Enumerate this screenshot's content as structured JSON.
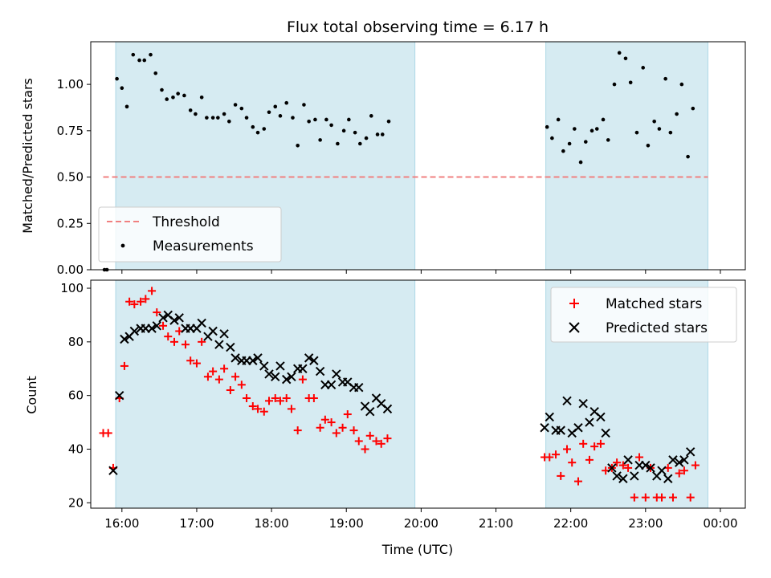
{
  "chart_data": [
    {
      "type": "scatter",
      "title": "Flux total observing time = 6.17 h",
      "xlabel": "",
      "ylabel": "Matched/Predicted stars",
      "xlim": [
        "15:35",
        "00:20"
      ],
      "ylim": [
        0,
        1.23
      ],
      "yticks": [
        "0.00",
        "0.25",
        "0.50",
        "0.75",
        "1.00"
      ],
      "legend_position": "lower-left",
      "shaded_intervals": [
        [
          "15:55",
          "19:55"
        ],
        [
          "21:40",
          "23:50"
        ]
      ],
      "threshold": {
        "name": "Threshold",
        "value": 0.5,
        "x_range": [
          "15:45",
          "23:50"
        ],
        "color": "#f08080"
      },
      "series": [
        {
          "name": "Measurements",
          "color": "#000000",
          "points": [
            [
              "15:46",
              0.0
            ],
            [
              "15:48",
              0.0
            ],
            [
              "15:56",
              1.03
            ],
            [
              "16:00",
              0.98
            ],
            [
              "16:04",
              0.88
            ],
            [
              "16:09",
              1.16
            ],
            [
              "16:14",
              1.13
            ],
            [
              "16:18",
              1.13
            ],
            [
              "16:23",
              1.16
            ],
            [
              "16:27",
              1.06
            ],
            [
              "16:32",
              0.97
            ],
            [
              "16:36",
              0.92
            ],
            [
              "16:41",
              0.93
            ],
            [
              "16:45",
              0.95
            ],
            [
              "16:50",
              0.94
            ],
            [
              "16:55",
              0.86
            ],
            [
              "16:59",
              0.84
            ],
            [
              "17:04",
              0.93
            ],
            [
              "17:08",
              0.82
            ],
            [
              "17:13",
              0.82
            ],
            [
              "17:17",
              0.82
            ],
            [
              "17:22",
              0.84
            ],
            [
              "17:26",
              0.8
            ],
            [
              "17:31",
              0.89
            ],
            [
              "17:36",
              0.87
            ],
            [
              "17:40",
              0.82
            ],
            [
              "17:45",
              0.77
            ],
            [
              "17:49",
              0.74
            ],
            [
              "17:54",
              0.76
            ],
            [
              "17:58",
              0.85
            ],
            [
              "18:03",
              0.88
            ],
            [
              "18:07",
              0.83
            ],
            [
              "18:12",
              0.9
            ],
            [
              "18:17",
              0.82
            ],
            [
              "18:21",
              0.67
            ],
            [
              "18:26",
              0.89
            ],
            [
              "18:30",
              0.8
            ],
            [
              "18:35",
              0.81
            ],
            [
              "18:39",
              0.7
            ],
            [
              "18:44",
              0.81
            ],
            [
              "18:48",
              0.78
            ],
            [
              "18:53",
              0.68
            ],
            [
              "18:58",
              0.75
            ],
            [
              "19:02",
              0.81
            ],
            [
              "19:07",
              0.74
            ],
            [
              "19:11",
              0.68
            ],
            [
              "19:16",
              0.71
            ],
            [
              "19:20",
              0.83
            ],
            [
              "19:25",
              0.73
            ],
            [
              "19:29",
              0.73
            ],
            [
              "19:34",
              0.8
            ],
            [
              "21:41",
              0.77
            ],
            [
              "21:45",
              0.71
            ],
            [
              "21:50",
              0.81
            ],
            [
              "21:54",
              0.64
            ],
            [
              "21:59",
              0.68
            ],
            [
              "22:03",
              0.76
            ],
            [
              "22:08",
              0.58
            ],
            [
              "22:12",
              0.69
            ],
            [
              "22:17",
              0.75
            ],
            [
              "22:21",
              0.76
            ],
            [
              "22:26",
              0.81
            ],
            [
              "22:30",
              0.7
            ],
            [
              "22:35",
              1.0
            ],
            [
              "22:39",
              1.17
            ],
            [
              "22:44",
              1.14
            ],
            [
              "22:48",
              1.01
            ],
            [
              "22:53",
              0.74
            ],
            [
              "22:58",
              1.09
            ],
            [
              "23:02",
              0.67
            ],
            [
              "23:07",
              0.8
            ],
            [
              "23:11",
              0.76
            ],
            [
              "23:16",
              1.03
            ],
            [
              "23:20",
              0.74
            ],
            [
              "23:25",
              0.84
            ],
            [
              "23:29",
              1.0
            ],
            [
              "23:34",
              0.61
            ],
            [
              "23:38",
              0.87
            ]
          ]
        }
      ]
    },
    {
      "type": "scatter",
      "title": "",
      "xlabel": "Time (UTC)",
      "ylabel": "Count",
      "xlim": [
        "15:35",
        "00:20"
      ],
      "ylim": [
        18,
        103
      ],
      "yticks": [
        "20",
        "40",
        "60",
        "80",
        "100"
      ],
      "xticks": [
        "16:00",
        "17:00",
        "18:00",
        "19:00",
        "20:00",
        "21:00",
        "22:00",
        "23:00",
        "00:00"
      ],
      "legend_position": "top-right",
      "shaded_intervals": [
        [
          "15:55",
          "19:55"
        ],
        [
          "21:40",
          "23:50"
        ]
      ],
      "series": [
        {
          "name": "Matched stars",
          "marker": "plus",
          "color": "#ff0000",
          "points": [
            [
              "15:45",
              46
            ],
            [
              "15:49",
              46
            ],
            [
              "15:53",
              33
            ],
            [
              "15:58",
              59
            ],
            [
              "16:02",
              71
            ],
            [
              "16:06",
              95
            ],
            [
              "16:10",
              94
            ],
            [
              "16:15",
              95
            ],
            [
              "16:19",
              96
            ],
            [
              "16:24",
              99
            ],
            [
              "16:28",
              91
            ],
            [
              "16:33",
              86
            ],
            [
              "16:37",
              82
            ],
            [
              "16:42",
              80
            ],
            [
              "16:46",
              84
            ],
            [
              "16:51",
              79
            ],
            [
              "16:55",
              73
            ],
            [
              "17:00",
              72
            ],
            [
              "17:04",
              80
            ],
            [
              "17:09",
              67
            ],
            [
              "17:13",
              69
            ],
            [
              "17:18",
              66
            ],
            [
              "17:22",
              70
            ],
            [
              "17:27",
              62
            ],
            [
              "17:31",
              67
            ],
            [
              "17:36",
              64
            ],
            [
              "17:40",
              59
            ],
            [
              "17:45",
              56
            ],
            [
              "17:49",
              55
            ],
            [
              "17:54",
              54
            ],
            [
              "17:58",
              58
            ],
            [
              "18:03",
              59
            ],
            [
              "18:07",
              58
            ],
            [
              "18:12",
              59
            ],
            [
              "18:16",
              55
            ],
            [
              "18:21",
              47
            ],
            [
              "18:25",
              66
            ],
            [
              "18:30",
              59
            ],
            [
              "18:34",
              59
            ],
            [
              "18:39",
              48
            ],
            [
              "18:43",
              51
            ],
            [
              "18:48",
              50
            ],
            [
              "18:52",
              46
            ],
            [
              "18:57",
              48
            ],
            [
              "19:01",
              53
            ],
            [
              "19:06",
              47
            ],
            [
              "19:10",
              43
            ],
            [
              "19:15",
              40
            ],
            [
              "19:19",
              45
            ],
            [
              "19:24",
              43
            ],
            [
              "19:28",
              42
            ],
            [
              "19:33",
              44
            ],
            [
              "21:39",
              37
            ],
            [
              "21:43",
              37
            ],
            [
              "21:48",
              38
            ],
            [
              "21:52",
              30
            ],
            [
              "21:57",
              40
            ],
            [
              "22:01",
              35
            ],
            [
              "22:06",
              28
            ],
            [
              "22:10",
              42
            ],
            [
              "22:15",
              36
            ],
            [
              "22:19",
              41
            ],
            [
              "22:24",
              42
            ],
            [
              "22:28",
              32
            ],
            [
              "22:33",
              33
            ],
            [
              "22:37",
              35
            ],
            [
              "22:42",
              34
            ],
            [
              "22:46",
              33
            ],
            [
              "22:51",
              22
            ],
            [
              "22:55",
              37
            ],
            [
              "23:00",
              22
            ],
            [
              "23:04",
              33
            ],
            [
              "23:09",
              22
            ],
            [
              "23:13",
              22
            ],
            [
              "23:18",
              33
            ],
            [
              "23:22",
              22
            ],
            [
              "23:27",
              31
            ],
            [
              "23:31",
              32
            ],
            [
              "23:36",
              22
            ],
            [
              "23:40",
              34
            ]
          ]
        },
        {
          "name": "Predicted stars",
          "marker": "x",
          "color": "#000000",
          "points": [
            [
              "15:53",
              32
            ],
            [
              "15:58",
              60
            ],
            [
              "16:02",
              81
            ],
            [
              "16:06",
              82
            ],
            [
              "16:10",
              84
            ],
            [
              "16:15",
              85
            ],
            [
              "16:19",
              85
            ],
            [
              "16:24",
              85
            ],
            [
              "16:28",
              86
            ],
            [
              "16:33",
              89
            ],
            [
              "16:37",
              90
            ],
            [
              "16:42",
              88
            ],
            [
              "16:46",
              89
            ],
            [
              "16:51",
              85
            ],
            [
              "16:55",
              85
            ],
            [
              "17:00",
              85
            ],
            [
              "17:04",
              87
            ],
            [
              "17:09",
              82
            ],
            [
              "17:13",
              84
            ],
            [
              "17:18",
              79
            ],
            [
              "17:22",
              83
            ],
            [
              "17:27",
              78
            ],
            [
              "17:31",
              74
            ],
            [
              "17:36",
              73
            ],
            [
              "17:40",
              73
            ],
            [
              "17:45",
              73
            ],
            [
              "17:49",
              74
            ],
            [
              "17:54",
              71
            ],
            [
              "17:58",
              68
            ],
            [
              "18:03",
              67
            ],
            [
              "18:07",
              71
            ],
            [
              "18:12",
              66
            ],
            [
              "18:16",
              67
            ],
            [
              "18:21",
              70
            ],
            [
              "18:25",
              70
            ],
            [
              "18:30",
              74
            ],
            [
              "18:34",
              73
            ],
            [
              "18:39",
              69
            ],
            [
              "18:43",
              64
            ],
            [
              "18:48",
              64
            ],
            [
              "18:52",
              68
            ],
            [
              "18:57",
              65
            ],
            [
              "19:01",
              65
            ],
            [
              "19:06",
              63
            ],
            [
              "19:10",
              63
            ],
            [
              "19:15",
              56
            ],
            [
              "19:19",
              54
            ],
            [
              "19:24",
              59
            ],
            [
              "19:28",
              57
            ],
            [
              "19:33",
              55
            ],
            [
              "21:39",
              48
            ],
            [
              "21:43",
              52
            ],
            [
              "21:48",
              47
            ],
            [
              "21:52",
              47
            ],
            [
              "21:57",
              58
            ],
            [
              "22:01",
              46
            ],
            [
              "22:06",
              48
            ],
            [
              "22:10",
              57
            ],
            [
              "22:15",
              50
            ],
            [
              "22:19",
              54
            ],
            [
              "22:24",
              52
            ],
            [
              "22:28",
              46
            ],
            [
              "22:33",
              33
            ],
            [
              "22:37",
              30
            ],
            [
              "22:42",
              29
            ],
            [
              "22:46",
              36
            ],
            [
              "22:51",
              30
            ],
            [
              "22:55",
              34
            ],
            [
              "23:00",
              34
            ],
            [
              "23:04",
              33
            ],
            [
              "23:09",
              30
            ],
            [
              "23:13",
              32
            ],
            [
              "23:18",
              29
            ],
            [
              "23:22",
              36
            ],
            [
              "23:27",
              35
            ],
            [
              "23:31",
              36
            ],
            [
              "23:36",
              39
            ]
          ]
        }
      ]
    }
  ]
}
